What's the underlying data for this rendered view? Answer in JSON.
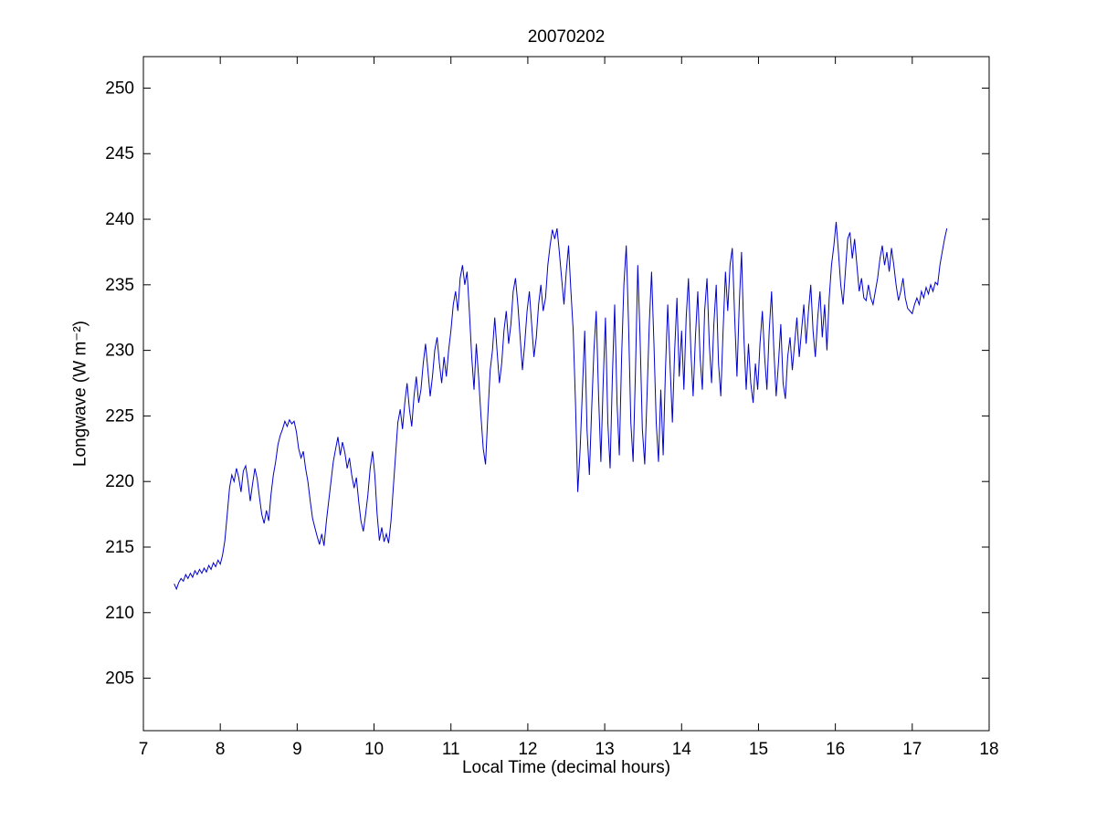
{
  "chart_data": {
    "type": "line",
    "title": "20070202",
    "xlabel": "Local Time (decimal hours)",
    "ylabel": "Longwave (W m⁻²)",
    "xlim": [
      7,
      18
    ],
    "ylim": [
      201,
      252.4
    ],
    "x_ticks": [
      7,
      8,
      9,
      10,
      11,
      12,
      13,
      14,
      15,
      16,
      17,
      18
    ],
    "y_ticks": [
      205,
      210,
      215,
      220,
      225,
      230,
      235,
      240,
      245,
      250
    ],
    "grid": false,
    "legend": null,
    "line_color": "#0000CC",
    "background_color": "#ffffff",
    "points": [
      [
        7.4,
        212.2
      ],
      [
        7.43,
        211.8
      ],
      [
        7.46,
        212.3
      ],
      [
        7.49,
        212.6
      ],
      [
        7.52,
        212.4
      ],
      [
        7.55,
        212.9
      ],
      [
        7.58,
        212.6
      ],
      [
        7.61,
        213.0
      ],
      [
        7.64,
        212.7
      ],
      [
        7.67,
        213.2
      ],
      [
        7.7,
        212.9
      ],
      [
        7.73,
        213.3
      ],
      [
        7.76,
        213.0
      ],
      [
        7.79,
        213.4
      ],
      [
        7.82,
        213.1
      ],
      [
        7.85,
        213.6
      ],
      [
        7.88,
        213.3
      ],
      [
        7.91,
        213.8
      ],
      [
        7.94,
        213.5
      ],
      [
        7.97,
        214.0
      ],
      [
        8.0,
        213.7
      ],
      [
        8.03,
        214.4
      ],
      [
        8.06,
        215.5
      ],
      [
        8.09,
        217.5
      ],
      [
        8.12,
        219.5
      ],
      [
        8.15,
        220.5
      ],
      [
        8.18,
        220.0
      ],
      [
        8.21,
        221.0
      ],
      [
        8.24,
        220.3
      ],
      [
        8.27,
        219.2
      ],
      [
        8.3,
        220.8
      ],
      [
        8.33,
        221.2
      ],
      [
        8.36,
        220.0
      ],
      [
        8.39,
        218.5
      ],
      [
        8.42,
        219.8
      ],
      [
        8.45,
        221.0
      ],
      [
        8.48,
        220.2
      ],
      [
        8.51,
        218.8
      ],
      [
        8.54,
        217.5
      ],
      [
        8.57,
        216.8
      ],
      [
        8.6,
        217.8
      ],
      [
        8.63,
        217.0
      ],
      [
        8.66,
        219.0
      ],
      [
        8.69,
        220.5
      ],
      [
        8.72,
        221.5
      ],
      [
        8.75,
        222.8
      ],
      [
        8.78,
        223.5
      ],
      [
        8.81,
        224.0
      ],
      [
        8.84,
        224.6
      ],
      [
        8.87,
        224.2
      ],
      [
        8.9,
        224.7
      ],
      [
        8.93,
        224.4
      ],
      [
        8.96,
        224.6
      ],
      [
        8.99,
        223.8
      ],
      [
        9.02,
        222.5
      ],
      [
        9.05,
        221.8
      ],
      [
        9.08,
        222.3
      ],
      [
        9.11,
        221.0
      ],
      [
        9.14,
        220.0
      ],
      [
        9.17,
        218.5
      ],
      [
        9.2,
        217.2
      ],
      [
        9.23,
        216.5
      ],
      [
        9.26,
        215.8
      ],
      [
        9.29,
        215.2
      ],
      [
        9.32,
        216.0
      ],
      [
        9.35,
        215.1
      ],
      [
        9.38,
        217.0
      ],
      [
        9.41,
        218.5
      ],
      [
        9.44,
        220.0
      ],
      [
        9.47,
        221.5
      ],
      [
        9.5,
        222.5
      ],
      [
        9.53,
        223.4
      ],
      [
        9.56,
        222.0
      ],
      [
        9.59,
        223.0
      ],
      [
        9.62,
        222.2
      ],
      [
        9.65,
        221.0
      ],
      [
        9.68,
        221.8
      ],
      [
        9.71,
        220.5
      ],
      [
        9.74,
        219.5
      ],
      [
        9.77,
        220.3
      ],
      [
        9.8,
        218.5
      ],
      [
        9.83,
        217.0
      ],
      [
        9.86,
        216.2
      ],
      [
        9.89,
        217.5
      ],
      [
        9.92,
        219.0
      ],
      [
        9.95,
        221.0
      ],
      [
        9.98,
        222.3
      ],
      [
        10.01,
        220.5
      ],
      [
        10.04,
        217.5
      ],
      [
        10.07,
        215.5
      ],
      [
        10.1,
        216.5
      ],
      [
        10.13,
        215.4
      ],
      [
        10.16,
        216.0
      ],
      [
        10.19,
        215.3
      ],
      [
        10.22,
        217.0
      ],
      [
        10.25,
        219.5
      ],
      [
        10.28,
        222.0
      ],
      [
        10.31,
        224.5
      ],
      [
        10.34,
        225.5
      ],
      [
        10.37,
        224.0
      ],
      [
        10.4,
        226.0
      ],
      [
        10.43,
        227.5
      ],
      [
        10.46,
        225.5
      ],
      [
        10.49,
        224.2
      ],
      [
        10.52,
        226.5
      ],
      [
        10.55,
        228.0
      ],
      [
        10.58,
        226.0
      ],
      [
        10.61,
        227.0
      ],
      [
        10.64,
        229.0
      ],
      [
        10.67,
        230.5
      ],
      [
        10.7,
        228.5
      ],
      [
        10.73,
        226.5
      ],
      [
        10.76,
        228.0
      ],
      [
        10.79,
        230.0
      ],
      [
        10.82,
        231.0
      ],
      [
        10.85,
        229.0
      ],
      [
        10.88,
        227.5
      ],
      [
        10.91,
        229.5
      ],
      [
        10.94,
        228.0
      ],
      [
        10.97,
        230.0
      ],
      [
        11.0,
        231.5
      ],
      [
        11.03,
        233.5
      ],
      [
        11.06,
        234.5
      ],
      [
        11.09,
        233.0
      ],
      [
        11.12,
        235.5
      ],
      [
        11.15,
        236.5
      ],
      [
        11.18,
        235.0
      ],
      [
        11.21,
        236.0
      ],
      [
        11.24,
        233.0
      ],
      [
        11.27,
        229.5
      ],
      [
        11.3,
        227.0
      ],
      [
        11.33,
        230.5
      ],
      [
        11.36,
        228.0
      ],
      [
        11.39,
        225.0
      ],
      [
        11.42,
        222.5
      ],
      [
        11.45,
        221.3
      ],
      [
        11.48,
        225.0
      ],
      [
        11.51,
        228.5
      ],
      [
        11.54,
        230.0
      ],
      [
        11.57,
        232.5
      ],
      [
        11.6,
        230.0
      ],
      [
        11.63,
        227.5
      ],
      [
        11.66,
        229.0
      ],
      [
        11.69,
        231.5
      ],
      [
        11.72,
        233.0
      ],
      [
        11.75,
        230.5
      ],
      [
        11.78,
        232.0
      ],
      [
        11.81,
        234.5
      ],
      [
        11.84,
        235.5
      ],
      [
        11.87,
        233.5
      ],
      [
        11.9,
        231.0
      ],
      [
        11.93,
        228.5
      ],
      [
        11.96,
        230.5
      ],
      [
        11.99,
        233.0
      ],
      [
        12.02,
        234.5
      ],
      [
        12.05,
        232.0
      ],
      [
        12.08,
        229.5
      ],
      [
        12.11,
        231.0
      ],
      [
        12.14,
        233.5
      ],
      [
        12.17,
        235.0
      ],
      [
        12.2,
        233.0
      ],
      [
        12.23,
        234.0
      ],
      [
        12.26,
        236.5
      ],
      [
        12.29,
        238.0
      ],
      [
        12.32,
        239.2
      ],
      [
        12.35,
        238.5
      ],
      [
        12.38,
        239.3
      ],
      [
        12.41,
        237.5
      ],
      [
        12.44,
        235.5
      ],
      [
        12.47,
        233.5
      ],
      [
        12.5,
        236.0
      ],
      [
        12.53,
        238.0
      ],
      [
        12.56,
        234.5
      ],
      [
        12.59,
        231.5
      ],
      [
        12.62,
        226.0
      ],
      [
        12.65,
        219.2
      ],
      [
        12.68,
        222.5
      ],
      [
        12.71,
        227.0
      ],
      [
        12.74,
        231.5
      ],
      [
        12.77,
        224.0
      ],
      [
        12.8,
        220.5
      ],
      [
        12.83,
        225.5
      ],
      [
        12.86,
        230.0
      ],
      [
        12.89,
        233.0
      ],
      [
        12.92,
        226.5
      ],
      [
        12.95,
        221.5
      ],
      [
        12.98,
        227.5
      ],
      [
        13.01,
        232.5
      ],
      [
        13.04,
        224.5
      ],
      [
        13.07,
        221.0
      ],
      [
        13.1,
        228.0
      ],
      [
        13.13,
        233.5
      ],
      [
        13.16,
        226.0
      ],
      [
        13.19,
        222.0
      ],
      [
        13.22,
        229.5
      ],
      [
        13.25,
        235.0
      ],
      [
        13.28,
        238.0
      ],
      [
        13.31,
        232.0
      ],
      [
        13.34,
        224.5
      ],
      [
        13.37,
        221.5
      ],
      [
        13.4,
        228.5
      ],
      [
        13.43,
        236.5
      ],
      [
        13.46,
        231.0
      ],
      [
        13.49,
        224.0
      ],
      [
        13.52,
        221.3
      ],
      [
        13.55,
        226.5
      ],
      [
        13.58,
        232.0
      ],
      [
        13.61,
        236.0
      ],
      [
        13.64,
        230.5
      ],
      [
        13.67,
        224.5
      ],
      [
        13.7,
        221.5
      ],
      [
        13.73,
        227.0
      ],
      [
        13.76,
        222.0
      ],
      [
        13.79,
        228.5
      ],
      [
        13.82,
        233.5
      ],
      [
        13.85,
        229.0
      ],
      [
        13.88,
        224.5
      ],
      [
        13.91,
        230.0
      ],
      [
        13.94,
        234.0
      ],
      [
        13.97,
        228.0
      ],
      [
        14.0,
        231.5
      ],
      [
        14.03,
        227.0
      ],
      [
        14.06,
        232.5
      ],
      [
        14.09,
        235.5
      ],
      [
        14.12,
        230.0
      ],
      [
        14.15,
        226.5
      ],
      [
        14.18,
        231.0
      ],
      [
        14.21,
        234.5
      ],
      [
        14.24,
        229.5
      ],
      [
        14.27,
        227.0
      ],
      [
        14.3,
        233.0
      ],
      [
        14.33,
        235.5
      ],
      [
        14.36,
        230.5
      ],
      [
        14.39,
        227.5
      ],
      [
        14.42,
        232.0
      ],
      [
        14.45,
        235.0
      ],
      [
        14.48,
        229.0
      ],
      [
        14.51,
        226.5
      ],
      [
        14.54,
        231.5
      ],
      [
        14.57,
        236.0
      ],
      [
        14.6,
        233.0
      ],
      [
        14.63,
        236.5
      ],
      [
        14.66,
        237.8
      ],
      [
        14.69,
        232.5
      ],
      [
        14.72,
        228.0
      ],
      [
        14.75,
        233.5
      ],
      [
        14.78,
        237.5
      ],
      [
        14.81,
        231.0
      ],
      [
        14.84,
        227.0
      ],
      [
        14.87,
        230.5
      ],
      [
        14.9,
        227.5
      ],
      [
        14.93,
        226.0
      ],
      [
        14.96,
        229.0
      ],
      [
        14.99,
        227.0
      ],
      [
        15.02,
        230.5
      ],
      [
        15.05,
        233.0
      ],
      [
        15.08,
        229.5
      ],
      [
        15.11,
        227.0
      ],
      [
        15.14,
        231.5
      ],
      [
        15.17,
        234.5
      ],
      [
        15.2,
        230.0
      ],
      [
        15.23,
        226.5
      ],
      [
        15.26,
        229.0
      ],
      [
        15.29,
        232.0
      ],
      [
        15.32,
        227.5
      ],
      [
        15.35,
        226.3
      ],
      [
        15.38,
        229.5
      ],
      [
        15.41,
        231.0
      ],
      [
        15.44,
        228.5
      ],
      [
        15.47,
        230.5
      ],
      [
        15.5,
        232.5
      ],
      [
        15.53,
        229.5
      ],
      [
        15.56,
        231.5
      ],
      [
        15.59,
        233.5
      ],
      [
        15.62,
        230.5
      ],
      [
        15.65,
        233.0
      ],
      [
        15.68,
        235.0
      ],
      [
        15.71,
        231.5
      ],
      [
        15.74,
        229.5
      ],
      [
        15.77,
        232.5
      ],
      [
        15.8,
        234.5
      ],
      [
        15.83,
        231.0
      ],
      [
        15.86,
        233.5
      ],
      [
        15.89,
        230.0
      ],
      [
        15.92,
        234.0
      ],
      [
        15.95,
        236.5
      ],
      [
        15.98,
        238.0
      ],
      [
        16.01,
        239.8
      ],
      [
        16.04,
        237.5
      ],
      [
        16.07,
        235.0
      ],
      [
        16.1,
        233.5
      ],
      [
        16.13,
        236.0
      ],
      [
        16.16,
        238.5
      ],
      [
        16.19,
        239.0
      ],
      [
        16.22,
        237.0
      ],
      [
        16.25,
        238.5
      ],
      [
        16.28,
        236.5
      ],
      [
        16.31,
        234.5
      ],
      [
        16.34,
        235.5
      ],
      [
        16.37,
        234.0
      ],
      [
        16.4,
        233.8
      ],
      [
        16.43,
        235.0
      ],
      [
        16.46,
        234.0
      ],
      [
        16.49,
        233.5
      ],
      [
        16.52,
        234.5
      ],
      [
        16.55,
        235.5
      ],
      [
        16.58,
        237.0
      ],
      [
        16.61,
        238.0
      ],
      [
        16.64,
        236.5
      ],
      [
        16.67,
        237.5
      ],
      [
        16.7,
        236.0
      ],
      [
        16.73,
        237.8
      ],
      [
        16.76,
        236.5
      ],
      [
        16.79,
        235.0
      ],
      [
        16.82,
        233.8
      ],
      [
        16.85,
        234.5
      ],
      [
        16.88,
        235.5
      ],
      [
        16.91,
        234.0
      ],
      [
        16.94,
        233.2
      ],
      [
        16.97,
        233.0
      ],
      [
        17.0,
        232.8
      ],
      [
        17.03,
        233.5
      ],
      [
        17.06,
        234.0
      ],
      [
        17.09,
        233.5
      ],
      [
        17.12,
        234.5
      ],
      [
        17.15,
        234.0
      ],
      [
        17.18,
        234.8
      ],
      [
        17.21,
        234.3
      ],
      [
        17.24,
        235.0
      ],
      [
        17.27,
        234.5
      ],
      [
        17.3,
        235.2
      ],
      [
        17.33,
        235.0
      ],
      [
        17.36,
        236.5
      ],
      [
        17.39,
        237.5
      ],
      [
        17.42,
        238.5
      ],
      [
        17.45,
        239.3
      ]
    ]
  }
}
